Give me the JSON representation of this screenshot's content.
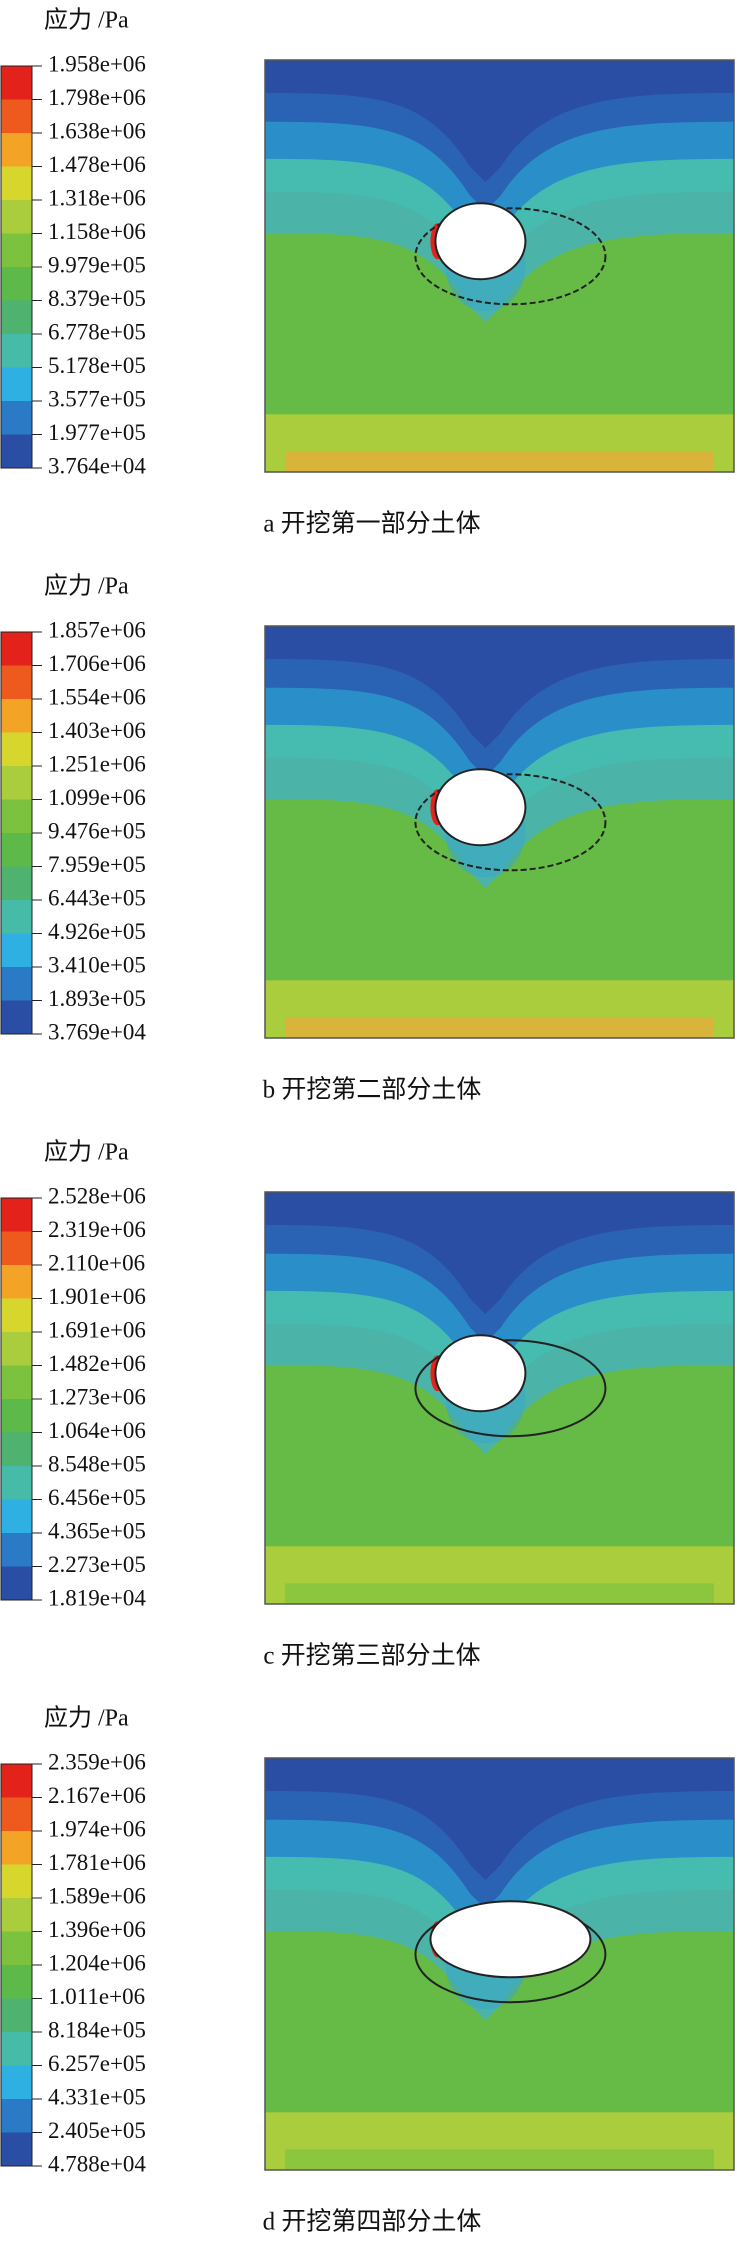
{
  "panels": [
    {
      "legend_title": "应力 /Pa",
      "levels": [
        "1.958e+06",
        "1.798e+06",
        "1.638e+06",
        "1.478e+06",
        "1.318e+06",
        "1.158e+06",
        "9.979e+05",
        "8.379e+05",
        "6.778e+05",
        "5.178e+05",
        "3.577e+05",
        "1.977e+05",
        "3.764e+04"
      ],
      "caption": "a 开挖第一部分土体"
    },
    {
      "legend_title": "应力 /Pa",
      "levels": [
        "1.857e+06",
        "1.706e+06",
        "1.554e+06",
        "1.403e+06",
        "1.251e+06",
        "1.099e+06",
        "9.476e+05",
        "7.959e+05",
        "6.443e+05",
        "4.926e+05",
        "3.410e+05",
        "1.893e+05",
        "3.769e+04"
      ],
      "caption": "b 开挖第二部分土体"
    },
    {
      "legend_title": "应力 /Pa",
      "levels": [
        "2.528e+06",
        "2.319e+06",
        "2.110e+06",
        "1.901e+06",
        "1.691e+06",
        "1.482e+06",
        "1.273e+06",
        "1.064e+06",
        "8.548e+05",
        "6.456e+05",
        "4.365e+05",
        "2.273e+05",
        "1.819e+04"
      ],
      "caption": "c 开挖第三部分土体"
    },
    {
      "legend_title": "应力 /Pa",
      "levels": [
        "2.359e+06",
        "2.167e+06",
        "1.974e+06",
        "1.781e+06",
        "1.589e+06",
        "1.396e+06",
        "1.204e+06",
        "1.011e+06",
        "8.184e+05",
        "6.257e+05",
        "4.331e+05",
        "2.405e+05",
        "4.788e+04"
      ],
      "caption": "d 开挖第四部分土体"
    }
  ]
}
